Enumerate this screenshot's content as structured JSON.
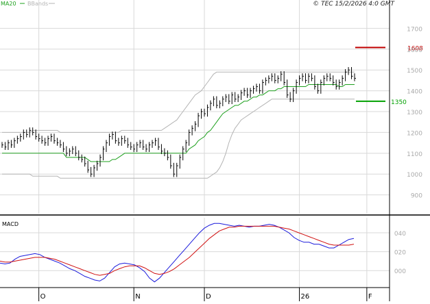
{
  "header": {
    "legend_ma": "MA20",
    "legend_bb": "BBands",
    "copyright": "© TEC 15/2/2026 4:0 GMT"
  },
  "colors": {
    "background": "#ffffff",
    "grid": "#d8d8d8",
    "axis": "#000000",
    "price_bars": "#000000",
    "ma20": "#1ea01e",
    "bbands": "#b4b4b4",
    "resistance": "#c00000",
    "support": "#00a000",
    "macd_line": "#1a1adc",
    "signal_line": "#d01010",
    "axis_text": "#aaaaaa"
  },
  "macd_panel": {
    "label": "MACD"
  },
  "chart_data": [
    {
      "type": "ohlc",
      "title": "",
      "ylim": [
        810,
        1800
      ],
      "y_ticks": [
        900,
        1000,
        1100,
        1200,
        1300,
        1400,
        1500,
        1600,
        1700
      ],
      "x_labels": [
        "O",
        "N",
        "D",
        "26",
        "F"
      ],
      "x_label_index": [
        12,
        43,
        66,
        97,
        119
      ],
      "legend": [
        "MA20",
        "BBands"
      ],
      "levels": [
        {
          "label": "1608",
          "value": 1608,
          "kind": "resistance"
        },
        {
          "label": "1350",
          "value": 1350,
          "kind": "support"
        }
      ],
      "close": [
        1140,
        1130,
        1150,
        1140,
        1160,
        1170,
        1180,
        1200,
        1190,
        1210,
        1200,
        1180,
        1170,
        1160,
        1150,
        1170,
        1180,
        1160,
        1150,
        1140,
        1120,
        1100,
        1110,
        1120,
        1100,
        1080,
        1070,
        1050,
        1020,
        1000,
        1030,
        1050,
        1080,
        1120,
        1150,
        1180,
        1190,
        1160,
        1150,
        1170,
        1160,
        1140,
        1130,
        1120,
        1140,
        1150,
        1130,
        1120,
        1140,
        1150,
        1160,
        1130,
        1110,
        1100,
        1080,
        1040,
        1000,
        1040,
        1080,
        1120,
        1150,
        1200,
        1220,
        1240,
        1280,
        1300,
        1290,
        1320,
        1340,
        1360,
        1330,
        1340,
        1360,
        1370,
        1350,
        1380,
        1360,
        1370,
        1390,
        1400,
        1380,
        1400,
        1410,
        1420,
        1400,
        1440,
        1450,
        1460,
        1470,
        1450,
        1460,
        1480,
        1440,
        1380,
        1360,
        1400,
        1440,
        1460,
        1470,
        1450,
        1470,
        1460,
        1420,
        1400,
        1440,
        1460,
        1470,
        1460,
        1440,
        1420,
        1440,
        1460,
        1490,
        1500,
        1470,
        1460
      ],
      "ma20": [
        1100,
        1100,
        1100,
        1100,
        1100,
        1100,
        1100,
        1100,
        1100,
        1100,
        1100,
        1100,
        1100,
        1100,
        1100,
        1100,
        1100,
        1100,
        1100,
        1100,
        1100,
        1080,
        1080,
        1080,
        1080,
        1080,
        1080,
        1080,
        1070,
        1060,
        1060,
        1060,
        1060,
        1060,
        1060,
        1060,
        1070,
        1070,
        1080,
        1090,
        1100,
        1100,
        1100,
        1100,
        1100,
        1100,
        1100,
        1100,
        1100,
        1100,
        1100,
        1100,
        1100,
        1100,
        1100,
        1100,
        1100,
        1100,
        1100,
        1100,
        1100,
        1120,
        1130,
        1140,
        1160,
        1170,
        1180,
        1200,
        1210,
        1230,
        1250,
        1270,
        1290,
        1300,
        1310,
        1320,
        1330,
        1330,
        1340,
        1350,
        1350,
        1360,
        1370,
        1370,
        1380,
        1380,
        1390,
        1400,
        1400,
        1400,
        1410,
        1410,
        1420,
        1420,
        1420,
        1420,
        1420,
        1420,
        1420,
        1420,
        1430,
        1430,
        1430,
        1430,
        1430,
        1430,
        1430,
        1430,
        1430,
        1430,
        1420,
        1420,
        1430,
        1430,
        1430,
        1430
      ],
      "bb_upper": [
        1200,
        1200,
        1200,
        1200,
        1200,
        1200,
        1200,
        1200,
        1200,
        1200,
        1210,
        1210,
        1210,
        1210,
        1210,
        1210,
        1210,
        1210,
        1210,
        1200,
        1200,
        1200,
        1200,
        1200,
        1200,
        1200,
        1200,
        1200,
        1200,
        1200,
        1200,
        1200,
        1200,
        1200,
        1200,
        1200,
        1200,
        1200,
        1200,
        1210,
        1210,
        1210,
        1210,
        1210,
        1210,
        1210,
        1210,
        1210,
        1210,
        1210,
        1210,
        1210,
        1210,
        1220,
        1230,
        1240,
        1250,
        1260,
        1280,
        1300,
        1320,
        1340,
        1360,
        1380,
        1390,
        1400,
        1420,
        1440,
        1460,
        1480,
        1490,
        1490,
        1490,
        1490,
        1490,
        1490,
        1490,
        1490,
        1490,
        1490,
        1490,
        1490,
        1490,
        1490,
        1490,
        1490,
        1490,
        1490,
        1490,
        1490,
        1490,
        1490,
        1490,
        1490,
        1490,
        1490,
        1490,
        1490,
        1490,
        1490,
        1490,
        1490,
        1490,
        1490,
        1490,
        1490,
        1490,
        1490,
        1490,
        1490,
        1490,
        1490,
        1490,
        1490,
        1490,
        1490
      ],
      "bb_lower": [
        1000,
        1000,
        1000,
        1000,
        1000,
        1000,
        1000,
        1000,
        1000,
        1000,
        990,
        990,
        990,
        990,
        990,
        990,
        990,
        990,
        990,
        980,
        980,
        980,
        980,
        980,
        980,
        980,
        980,
        980,
        980,
        980,
        980,
        980,
        980,
        980,
        980,
        980,
        980,
        980,
        980,
        980,
        980,
        980,
        980,
        980,
        980,
        980,
        980,
        980,
        980,
        980,
        980,
        980,
        980,
        980,
        980,
        980,
        980,
        980,
        980,
        980,
        980,
        980,
        980,
        980,
        980,
        980,
        980,
        980,
        990,
        1000,
        1010,
        1030,
        1060,
        1100,
        1150,
        1190,
        1220,
        1240,
        1260,
        1270,
        1280,
        1290,
        1300,
        1310,
        1320,
        1330,
        1340,
        1350,
        1360,
        1360,
        1360,
        1360,
        1360,
        1360,
        1360,
        1360,
        1360,
        1360,
        1360,
        1360,
        1360,
        1360,
        1360,
        1360,
        1360,
        1360,
        1360,
        1360,
        1360,
        1360,
        1360,
        1360,
        1360,
        1360,
        1360,
        1360
      ]
    },
    {
      "type": "line",
      "title": "MACD",
      "ylim": [
        -18,
        56
      ],
      "y_ticks": [
        0,
        20,
        40
      ],
      "y_tick_labels": [
        "000",
        "020",
        "040"
      ],
      "series": [
        {
          "name": "",
          "values": [
            8,
            7,
            8,
            12,
            15,
            16,
            17,
            18,
            17,
            14,
            12,
            10,
            8,
            5,
            2,
            0,
            -3,
            -6,
            -8,
            -10,
            -11,
            -8,
            -2,
            4,
            7,
            8,
            7,
            6,
            3,
            -1,
            -8,
            -12,
            -8,
            -2,
            4,
            10,
            16,
            22,
            28,
            34,
            40,
            45,
            48,
            50,
            50,
            49,
            48,
            47,
            48,
            47,
            46,
            47,
            47,
            48,
            49,
            48,
            46,
            43,
            40,
            35,
            32,
            30,
            30,
            28,
            28,
            26,
            24,
            24,
            27,
            30,
            33,
            34
          ]
        },
        {
          "name": "",
          "values": [
            10,
            9,
            9,
            10,
            11,
            12,
            13,
            14,
            14,
            14,
            13,
            12,
            10,
            8,
            6,
            4,
            2,
            0,
            -2,
            -4,
            -5,
            -4,
            -3,
            0,
            2,
            4,
            5,
            5,
            5,
            3,
            0,
            -3,
            -4,
            -3,
            -1,
            2,
            6,
            10,
            14,
            19,
            24,
            29,
            34,
            38,
            42,
            44,
            46,
            46,
            47,
            47,
            47,
            47,
            47,
            47,
            47,
            47,
            46,
            45,
            44,
            42,
            40,
            38,
            36,
            34,
            32,
            30,
            28,
            27,
            27,
            27,
            27,
            28
          ]
        }
      ]
    }
  ]
}
